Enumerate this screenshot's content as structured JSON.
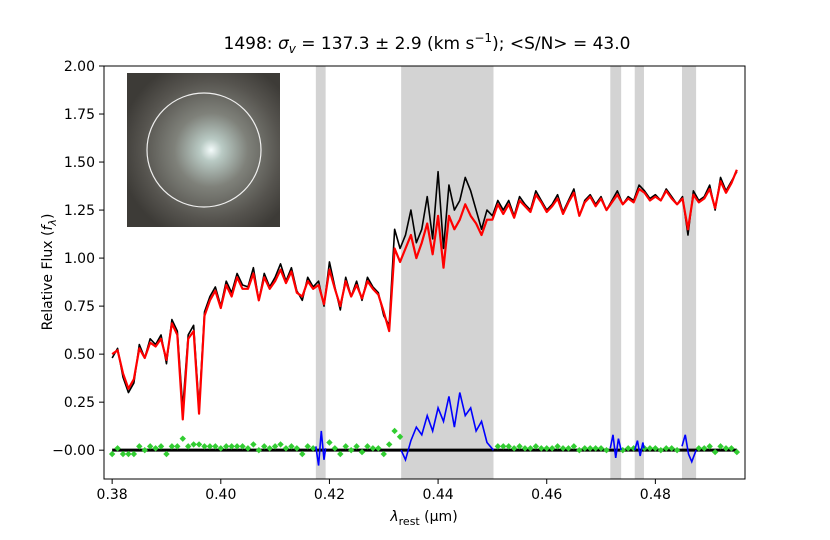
{
  "chart_data": {
    "type": "line",
    "title": {
      "prefix": "1498: ",
      "sigma": "σ",
      "sigma_sub": "v",
      "middle": " = 137.3 ± 2.9 (km s",
      "sup": "−1",
      "suffix": "); <S/N> = 43.0"
    },
    "xlabel": {
      "lambda": "λ",
      "sub": "rest",
      "rest": " (μm)"
    },
    "ylabel": {
      "main": "Relative Flux (",
      "f": "f",
      "sub": "λ",
      "close": ")"
    },
    "xlim": [
      0.3785,
      0.4965
    ],
    "ylim": [
      -0.15,
      2.0
    ],
    "xticks": [
      "0.38",
      "0.40",
      "0.42",
      "0.44",
      "0.46",
      "0.48"
    ],
    "yticks": [
      "−0.00",
      "0.25",
      "0.50",
      "0.75",
      "1.00",
      "1.25",
      "1.50",
      "1.75",
      "2.00"
    ],
    "xtick_values": [
      0.38,
      0.4,
      0.42,
      0.44,
      0.46,
      0.48
    ],
    "ytick_values": [
      0.0,
      0.25,
      0.5,
      0.75,
      1.0,
      1.25,
      1.5,
      1.75,
      2.0
    ],
    "masked_regions": [
      [
        0.4175,
        0.4193
      ],
      [
        0.4332,
        0.4502
      ],
      [
        0.4717,
        0.4737
      ],
      [
        0.4762,
        0.4779
      ],
      [
        0.4849,
        0.4875
      ]
    ],
    "colors": {
      "observed": "#000000",
      "model": "#ff0000",
      "residual_good": "#32cd32",
      "residual_masked": "#0000ff",
      "mask": "#d3d3d3"
    },
    "series": [
      {
        "role": "observed",
        "x": [
          0.38,
          0.381,
          0.382,
          0.383,
          0.384,
          0.385,
          0.386,
          0.387,
          0.388,
          0.389,
          0.39,
          0.391,
          0.392,
          0.393,
          0.394,
          0.395,
          0.396,
          0.397,
          0.398,
          0.399,
          0.4,
          0.401,
          0.402,
          0.403,
          0.404,
          0.405,
          0.406,
          0.407,
          0.408,
          0.409,
          0.41,
          0.411,
          0.412,
          0.413,
          0.414,
          0.415,
          0.416,
          0.417,
          0.418,
          0.419,
          0.42,
          0.421,
          0.422,
          0.423,
          0.424,
          0.425,
          0.426,
          0.427,
          0.428,
          0.429,
          0.43,
          0.431,
          0.432,
          0.433,
          0.434,
          0.435,
          0.436,
          0.437,
          0.438,
          0.439,
          0.44,
          0.441,
          0.442,
          0.443,
          0.444,
          0.445,
          0.446,
          0.447,
          0.448,
          0.449,
          0.45,
          0.451,
          0.452,
          0.453,
          0.454,
          0.455,
          0.456,
          0.457,
          0.458,
          0.459,
          0.46,
          0.461,
          0.462,
          0.463,
          0.464,
          0.465,
          0.466,
          0.467,
          0.468,
          0.469,
          0.47,
          0.471,
          0.472,
          0.473,
          0.474,
          0.475,
          0.476,
          0.477,
          0.478,
          0.479,
          0.48,
          0.481,
          0.482,
          0.483,
          0.484,
          0.485,
          0.486,
          0.487,
          0.488,
          0.489,
          0.49,
          0.491,
          0.492,
          0.493,
          0.494,
          0.495
        ],
        "y": [
          0.48,
          0.53,
          0.38,
          0.3,
          0.35,
          0.55,
          0.48,
          0.58,
          0.55,
          0.6,
          0.45,
          0.68,
          0.62,
          0.22,
          0.6,
          0.65,
          0.22,
          0.72,
          0.8,
          0.85,
          0.75,
          0.88,
          0.82,
          0.92,
          0.86,
          0.85,
          0.95,
          0.78,
          0.92,
          0.85,
          0.9,
          0.97,
          0.88,
          0.95,
          0.83,
          0.78,
          0.9,
          0.85,
          0.88,
          0.75,
          0.98,
          0.85,
          0.73,
          0.9,
          0.8,
          0.88,
          0.78,
          0.9,
          0.85,
          0.82,
          0.7,
          0.65,
          1.15,
          1.05,
          1.12,
          1.25,
          1.08,
          1.15,
          1.32,
          1.1,
          1.45,
          1.05,
          1.38,
          1.25,
          1.3,
          1.42,
          1.35,
          1.25,
          1.15,
          1.25,
          1.22,
          1.3,
          1.25,
          1.3,
          1.22,
          1.32,
          1.28,
          1.25,
          1.35,
          1.3,
          1.25,
          1.28,
          1.33,
          1.24,
          1.3,
          1.36,
          1.22,
          1.3,
          1.33,
          1.28,
          1.32,
          1.25,
          1.3,
          1.35,
          1.28,
          1.32,
          1.3,
          1.38,
          1.35,
          1.31,
          1.33,
          1.3,
          1.36,
          1.32,
          1.28,
          1.32,
          1.12,
          1.35,
          1.3,
          1.32,
          1.38,
          1.25,
          1.42,
          1.35,
          1.4,
          1.45
        ]
      },
      {
        "role": "model",
        "x": [
          0.38,
          0.381,
          0.382,
          0.383,
          0.384,
          0.385,
          0.386,
          0.387,
          0.388,
          0.389,
          0.39,
          0.391,
          0.392,
          0.393,
          0.394,
          0.395,
          0.396,
          0.397,
          0.398,
          0.399,
          0.4,
          0.401,
          0.402,
          0.403,
          0.404,
          0.405,
          0.406,
          0.407,
          0.408,
          0.409,
          0.41,
          0.411,
          0.412,
          0.413,
          0.414,
          0.415,
          0.416,
          0.417,
          0.418,
          0.419,
          0.42,
          0.421,
          0.422,
          0.423,
          0.424,
          0.425,
          0.426,
          0.427,
          0.428,
          0.429,
          0.43,
          0.431,
          0.432,
          0.433,
          0.434,
          0.435,
          0.436,
          0.437,
          0.438,
          0.439,
          0.44,
          0.441,
          0.442,
          0.443,
          0.444,
          0.445,
          0.446,
          0.447,
          0.448,
          0.449,
          0.45,
          0.451,
          0.452,
          0.453,
          0.454,
          0.455,
          0.456,
          0.457,
          0.458,
          0.459,
          0.46,
          0.461,
          0.462,
          0.463,
          0.464,
          0.465,
          0.466,
          0.467,
          0.468,
          0.469,
          0.47,
          0.471,
          0.472,
          0.473,
          0.474,
          0.475,
          0.476,
          0.477,
          0.478,
          0.479,
          0.48,
          0.481,
          0.482,
          0.483,
          0.484,
          0.485,
          0.486,
          0.487,
          0.488,
          0.489,
          0.49,
          0.491,
          0.492,
          0.493,
          0.494,
          0.495
        ],
        "y": [
          0.5,
          0.52,
          0.4,
          0.32,
          0.37,
          0.53,
          0.48,
          0.56,
          0.54,
          0.58,
          0.47,
          0.66,
          0.6,
          0.16,
          0.58,
          0.62,
          0.19,
          0.7,
          0.78,
          0.83,
          0.74,
          0.86,
          0.8,
          0.9,
          0.84,
          0.84,
          0.92,
          0.78,
          0.9,
          0.84,
          0.88,
          0.94,
          0.87,
          0.93,
          0.82,
          0.8,
          0.88,
          0.84,
          0.86,
          0.76,
          0.94,
          0.84,
          0.75,
          0.88,
          0.8,
          0.86,
          0.79,
          0.88,
          0.84,
          0.81,
          0.72,
          0.62,
          1.05,
          0.98,
          1.05,
          1.12,
          1.0,
          1.08,
          1.18,
          1.02,
          1.22,
          0.95,
          1.22,
          1.15,
          1.2,
          1.28,
          1.22,
          1.18,
          1.12,
          1.2,
          1.2,
          1.28,
          1.23,
          1.28,
          1.21,
          1.3,
          1.27,
          1.24,
          1.33,
          1.29,
          1.24,
          1.27,
          1.31,
          1.23,
          1.29,
          1.34,
          1.22,
          1.29,
          1.32,
          1.27,
          1.31,
          1.25,
          1.29,
          1.33,
          1.28,
          1.31,
          1.29,
          1.36,
          1.34,
          1.3,
          1.32,
          1.3,
          1.35,
          1.31,
          1.28,
          1.31,
          1.15,
          1.33,
          1.29,
          1.31,
          1.36,
          1.26,
          1.4,
          1.34,
          1.39,
          1.46
        ]
      },
      {
        "role": "residual_masked",
        "segments": [
          {
            "x": [
              0.4175,
              0.418,
              0.4185,
              0.419,
              0.4193
            ],
            "y": [
              0.02,
              -0.08,
              0.1,
              -0.05,
              0.01
            ]
          },
          {
            "x": [
              0.4332,
              0.434,
              0.435,
              0.436,
              0.437,
              0.438,
              0.439,
              0.44,
              0.441,
              0.442,
              0.443,
              0.444,
              0.445,
              0.446,
              0.447,
              0.448,
              0.449,
              0.4502
            ],
            "y": [
              0.0,
              -0.05,
              0.05,
              0.12,
              0.08,
              0.18,
              0.1,
              0.22,
              0.15,
              0.28,
              0.12,
              0.3,
              0.18,
              0.22,
              0.1,
              0.15,
              0.04,
              0.0
            ]
          },
          {
            "x": [
              0.4717,
              0.4722,
              0.4727,
              0.4732,
              0.4737
            ],
            "y": [
              0.01,
              0.08,
              -0.04,
              0.06,
              0.0
            ]
          },
          {
            "x": [
              0.4762,
              0.4767,
              0.4772,
              0.4777,
              0.4779
            ],
            "y": [
              0.0,
              0.05,
              -0.03,
              0.04,
              0.01
            ]
          },
          {
            "x": [
              0.4849,
              0.4855,
              0.4861,
              0.4867,
              0.4875
            ],
            "y": [
              0.02,
              0.08,
              -0.02,
              -0.06,
              0.0
            ]
          }
        ]
      }
    ]
  }
}
